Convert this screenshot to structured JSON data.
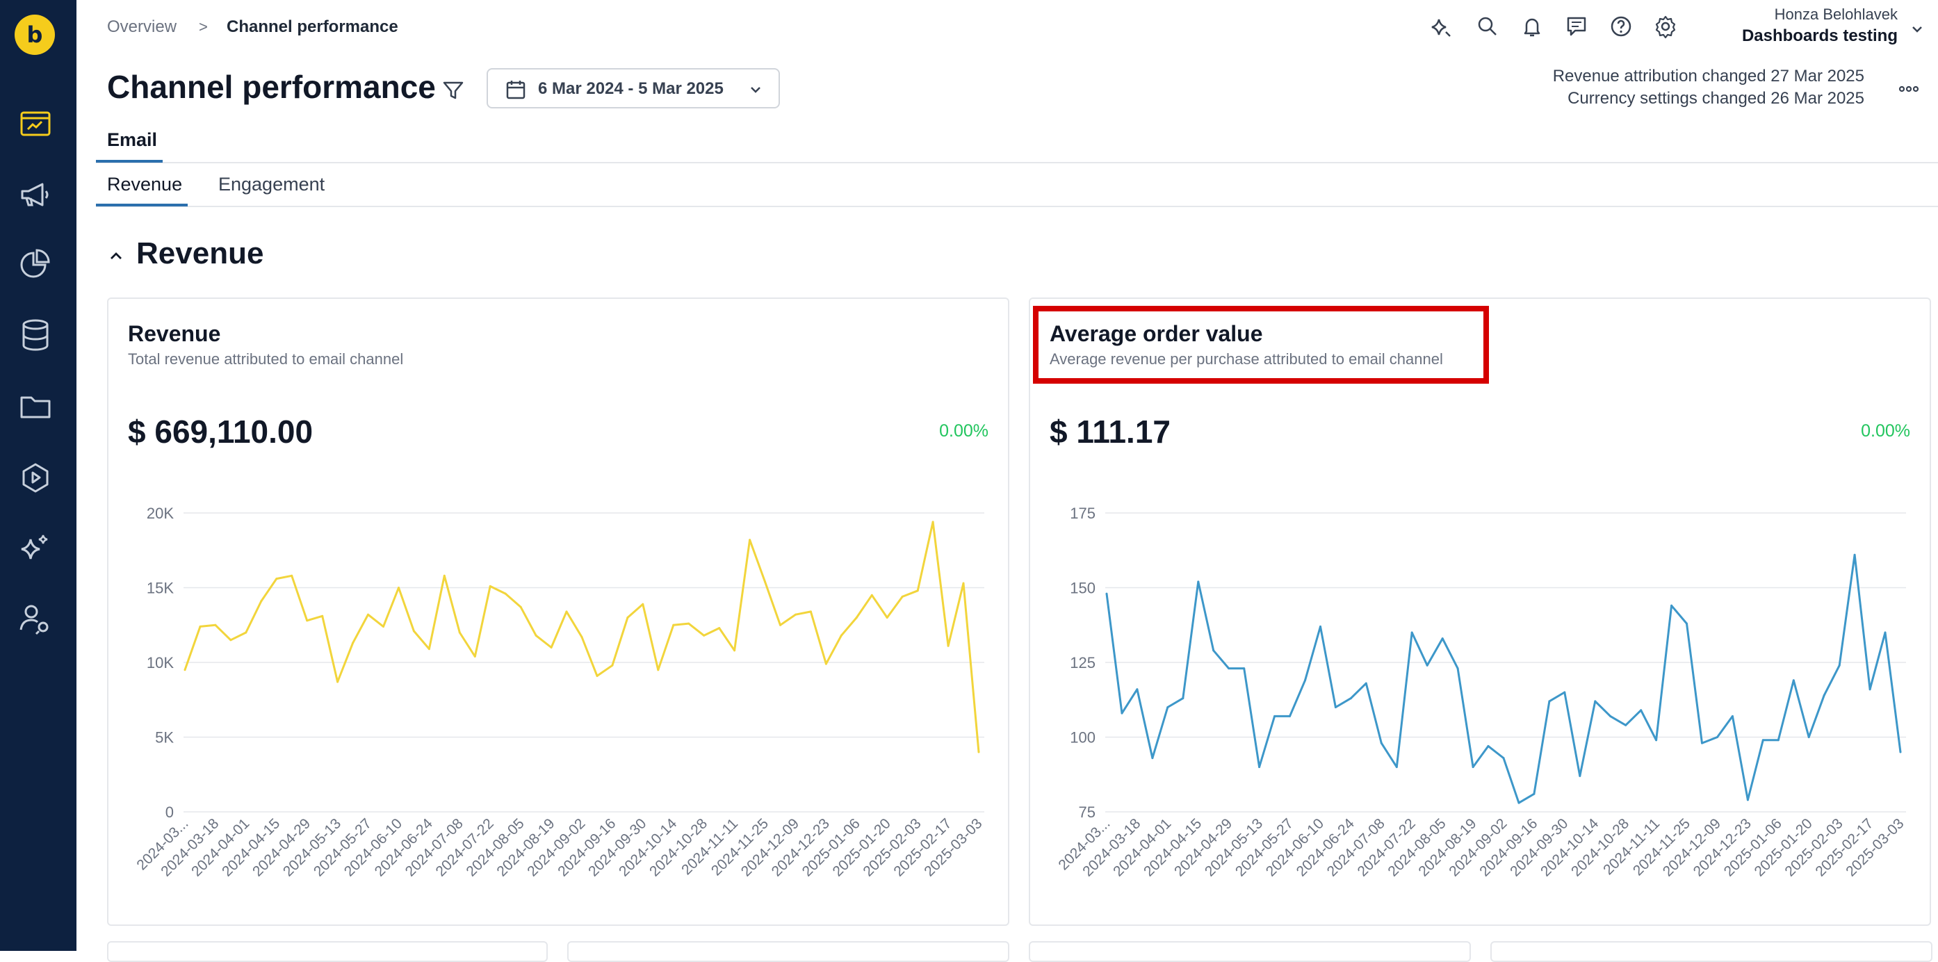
{
  "brand": {
    "logo_glyph": "b",
    "logo_color": "#f5cc1c",
    "sidebar_color": "#0d2140"
  },
  "sidebar": {
    "items": [
      {
        "name": "dashboards",
        "icon": "dashboard-icon",
        "active": true
      },
      {
        "name": "campaigns",
        "icon": "megaphone-icon"
      },
      {
        "name": "analytics",
        "icon": "pie-chart-icon"
      },
      {
        "name": "data",
        "icon": "database-icon"
      },
      {
        "name": "assets",
        "icon": "folder-icon"
      },
      {
        "name": "scenarios",
        "icon": "play-icon"
      },
      {
        "name": "ai",
        "icon": "sparkle-icon"
      },
      {
        "name": "users",
        "icon": "user-settings-icon"
      }
    ]
  },
  "breadcrumb": {
    "parent": "Overview",
    "separator": ">",
    "current": "Channel performance"
  },
  "topbar": {
    "icons": [
      "ai-assistant-icon",
      "search-icon",
      "bell-icon",
      "chat-icon",
      "help-icon",
      "gear-icon"
    ],
    "user_name": "Honza Belohlavek",
    "workspace": "Dashboards testing"
  },
  "header": {
    "title": "Channel performance",
    "date_range": "6 Mar 2024 - 5 Mar 2025",
    "notices": [
      "Revenue attribution changed 27 Mar 2025",
      "Currency settings changed 26 Mar 2025"
    ]
  },
  "tabs": {
    "primary": [
      "Email"
    ],
    "secondary": [
      "Revenue",
      "Engagement"
    ],
    "active_secondary": "Revenue"
  },
  "section": {
    "title": "Revenue"
  },
  "cards": [
    {
      "title": "Revenue",
      "subtitle": "Total revenue attributed to email channel",
      "value": "$ 669,110.00",
      "change": "0.00%"
    },
    {
      "title": "Average order value",
      "subtitle": "Average revenue per purchase attributed to email channel",
      "value": "$ 111.17",
      "change": "0.00%"
    }
  ],
  "chart_data": [
    {
      "type": "line",
      "color": "#f2d53c",
      "ylim": [
        0,
        20000
      ],
      "yticks": [
        0,
        5000,
        10000,
        15000,
        20000
      ],
      "ytick_labels": [
        "0",
        "5K",
        "10K",
        "15K",
        "20K"
      ],
      "grid": true,
      "xtick_labels": [
        "2024-03...",
        "2024-03-18",
        "2024-04-01",
        "2024-04-15",
        "2024-04-29",
        "2024-05-13",
        "2024-05-27",
        "2024-06-10",
        "2024-06-24",
        "2024-07-08",
        "2024-07-22",
        "2024-08-05",
        "2024-08-19",
        "2024-09-02",
        "2024-09-16",
        "2024-09-30",
        "2024-10-14",
        "2024-10-28",
        "2024-11-11",
        "2024-11-25",
        "2024-12-09",
        "2024-12-23",
        "2025-01-06",
        "2025-01-20",
        "2025-02-03",
        "2025-02-17",
        "2025-03-03"
      ],
      "values": [
        9500,
        12400,
        12500,
        11500,
        12000,
        14100,
        15600,
        15800,
        12800,
        13100,
        8700,
        11300,
        13200,
        12400,
        15000,
        12100,
        10900,
        15800,
        12000,
        10400,
        15100,
        14600,
        13700,
        11800,
        11000,
        13400,
        11700,
        9100,
        9800,
        13000,
        13900,
        9500,
        12500,
        12600,
        11800,
        12300,
        10800,
        18200,
        15400,
        12500,
        13200,
        13400,
        9900,
        11800,
        13000,
        14500,
        13000,
        14400,
        14800,
        19400,
        11100,
        15300,
        4000
      ]
    },
    {
      "type": "line",
      "color": "#3d97c9",
      "ylim": [
        75,
        175
      ],
      "yticks": [
        75,
        100,
        125,
        150,
        175
      ],
      "ytick_labels": [
        "75",
        "100",
        "125",
        "150",
        "175"
      ],
      "grid": true,
      "xtick_labels": [
        "2024-03...",
        "2024-03-18",
        "2024-04-01",
        "2024-04-15",
        "2024-04-29",
        "2024-05-13",
        "2024-05-27",
        "2024-06-10",
        "2024-06-24",
        "2024-07-08",
        "2024-07-22",
        "2024-08-05",
        "2024-08-19",
        "2024-09-02",
        "2024-09-16",
        "2024-09-30",
        "2024-10-14",
        "2024-10-28",
        "2024-11-11",
        "2024-11-25",
        "2024-12-09",
        "2024-12-23",
        "2025-01-06",
        "2025-01-20",
        "2025-02-03",
        "2025-02-17",
        "2025-03-03"
      ],
      "values": [
        148,
        108,
        116,
        93,
        110,
        113,
        152,
        129,
        123,
        123,
        90,
        107,
        107,
        119,
        137,
        110,
        113,
        118,
        98,
        90,
        135,
        124,
        133,
        123,
        90,
        97,
        93,
        78,
        81,
        112,
        115,
        87,
        112,
        107,
        104,
        109,
        99,
        144,
        138,
        98,
        100,
        107,
        79,
        99,
        99,
        119,
        100,
        114,
        124,
        161,
        116,
        135,
        95
      ]
    }
  ]
}
